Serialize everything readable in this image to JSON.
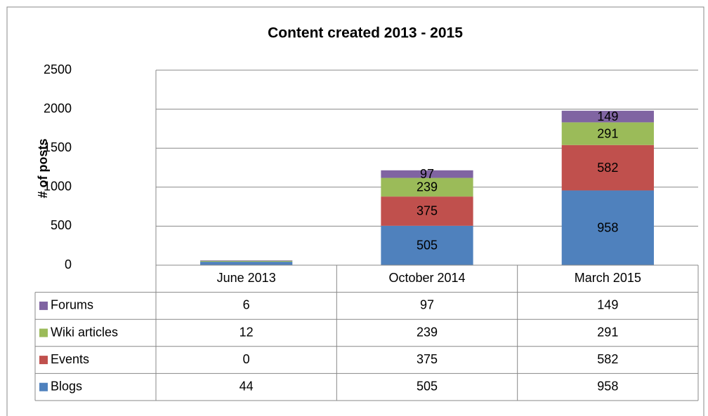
{
  "chart_data": {
    "type": "bar",
    "stacked": true,
    "title": "Content created 2013 - 2015",
    "y_label": "# of posts",
    "categories": [
      "June 2013",
      "October 2014",
      "March 2015"
    ],
    "series": [
      {
        "name": "Blogs",
        "color": "#4f81bd",
        "values": [
          44,
          505,
          958
        ]
      },
      {
        "name": "Events",
        "color": "#c0504d",
        "values": [
          0,
          375,
          582
        ]
      },
      {
        "name": "Wiki articles",
        "color": "#9bbb59",
        "values": [
          12,
          239,
          291
        ]
      },
      {
        "name": "Forums",
        "color": "#8064a2",
        "values": [
          6,
          97,
          149
        ]
      }
    ],
    "ylim": [
      0,
      2500
    ],
    "yticks": [
      0,
      500,
      1000,
      1500,
      2000,
      2500
    ],
    "grid": true,
    "data_table": true
  }
}
